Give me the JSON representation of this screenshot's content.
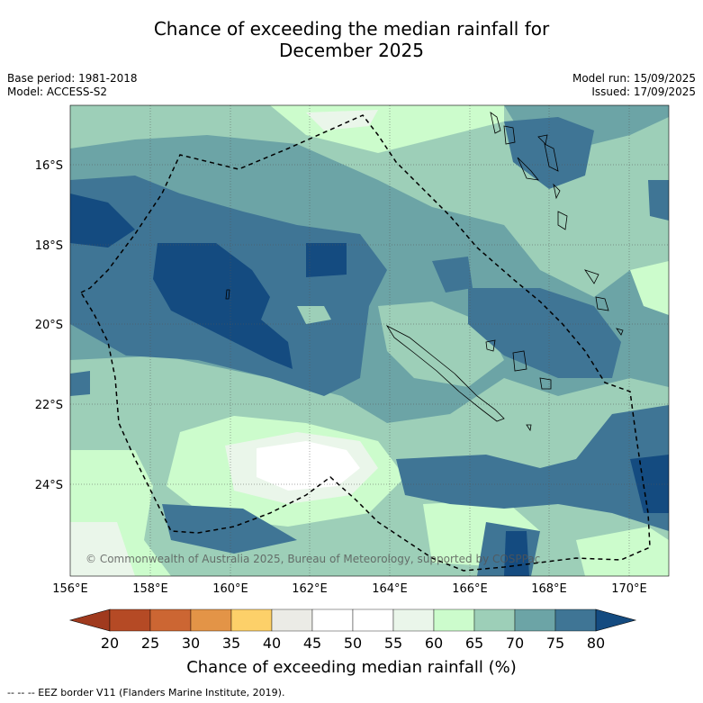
{
  "title_line1": "Chance of exceeding the median rainfall for",
  "title_line2": "December 2025",
  "base_period": "Base period: 1981-2018",
  "model": "Model: ACCESS-S2",
  "model_run": "Model run: 15/09/2025",
  "issued": "Issued: 17/09/2025",
  "copyright": "© Commonwealth of Australia 2025, Bureau of Meteorology, supported by COSPPac",
  "lat_labels": [
    "16°S",
    "18°S",
    "20°S",
    "22°S",
    "24°S"
  ],
  "lon_labels": [
    "156°E",
    "158°E",
    "160°E",
    "162°E",
    "164°E",
    "166°E",
    "168°E",
    "170°E"
  ],
  "colorbar": {
    "ticks": [
      "20",
      "25",
      "30",
      "35",
      "40",
      "45",
      "50",
      "55",
      "60",
      "65",
      "70",
      "75",
      "80"
    ],
    "colors": [
      "#a03a1e",
      "#b54a25",
      "#cc6633",
      "#e39447",
      "#fdd069",
      "#ebebe6",
      "#ffffff",
      "#ffffff",
      "#eaf6ea",
      "#ccfccc",
      "#9dcfb8",
      "#6ca4a6",
      "#3f7595",
      "#144b80"
    ],
    "label": "Chance of exceeding median rainfall (%)"
  },
  "footnote": "--  --  -- EEZ border V11 (Flanders Marine Institute, 2019)."
}
